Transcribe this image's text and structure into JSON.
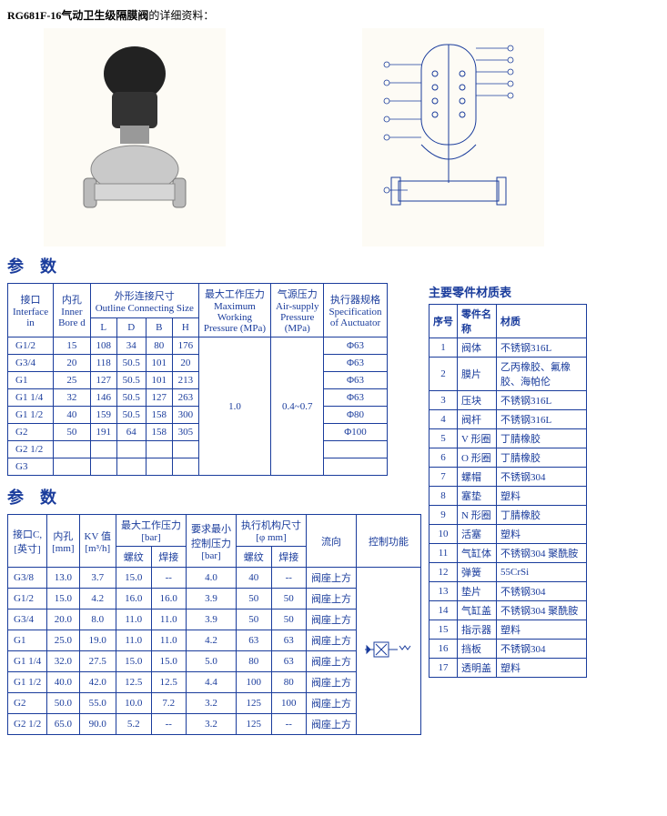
{
  "title_bold": "RG681F-16气动卫生级隔膜阀",
  "title_tail": "的详细资料：",
  "section_param": "参数",
  "colors": {
    "line": "#1a3c9c",
    "text": "#1a3c9c",
    "bg": "#ffffff"
  },
  "table1": {
    "headers": {
      "interface": "接口",
      "interface_en": "Interface",
      "interface_in": "in",
      "inner": "内孔",
      "inner_en": "Inner",
      "inner_bd": "Bore d",
      "outline_cn": "外形连接尺寸",
      "outline_en": "Outline Connecting Size",
      "L": "L",
      "D": "D",
      "B": "B",
      "H": "H",
      "maxp_cn": "最大工作压力",
      "maxp_en1": "Maximum",
      "maxp_en2": "Working",
      "maxp_en3": "Pressure (MPa)",
      "airp_cn": "气源压力",
      "airp_en1": "Air-supply",
      "airp_en2": "Pressure",
      "airp_en3": "(MPa)",
      "spec_cn": "执行器规格",
      "spec_en1": "Specification",
      "spec_en2": "of Auctuator"
    },
    "max_pressure": "1.0",
    "air_pressure": "0.4~0.7",
    "rows": [
      {
        "if": "G1/2",
        "bd": "15",
        "L": "108",
        "D": "34",
        "B": "80",
        "H": "176",
        "spec": "Φ63"
      },
      {
        "if": "G3/4",
        "bd": "20",
        "L": "118",
        "D": "50.5",
        "B": "101",
        "H": "20",
        "spec": "Φ63"
      },
      {
        "if": "G1",
        "bd": "25",
        "L": "127",
        "D": "50.5",
        "B": "101",
        "H": "213",
        "spec": "Φ63"
      },
      {
        "if": "G1 1/4",
        "bd": "32",
        "L": "146",
        "D": "50.5",
        "B": "127",
        "H": "263",
        "spec": "Φ63"
      },
      {
        "if": "G1 1/2",
        "bd": "40",
        "L": "159",
        "D": "50.5",
        "B": "158",
        "H": "300",
        "spec": "Φ80"
      },
      {
        "if": "G2",
        "bd": "50",
        "L": "191",
        "D": "64",
        "B": "158",
        "H": "305",
        "spec": "Φ100"
      },
      {
        "if": "G2 1/2",
        "bd": "",
        "L": "",
        "D": "",
        "B": "",
        "H": "",
        "spec": ""
      },
      {
        "if": "G3",
        "bd": "",
        "L": "",
        "D": "",
        "B": "",
        "H": "",
        "spec": ""
      }
    ]
  },
  "table2": {
    "headers": {
      "ifc_cn": "接口C,",
      "ifc_en": "[英寸]",
      "bore_cn": "内孔",
      "bore_en": "[mm]",
      "kv_cn": "KV 值",
      "kv_en": "[m³/h]",
      "maxp_cn": "最大工作压力",
      "maxp_en": "[bar]",
      "th": "螺纹",
      "we": "焊接",
      "minp_cn": "要求最小",
      "minp_cn2": "控制压力",
      "minp_en": "[bar]",
      "act_cn": "执行机构尺寸",
      "act_en": "[φ mm]",
      "flow": "流向",
      "func": "控制功能"
    },
    "flow_label": "阀座上方",
    "rows": [
      {
        "c": "G3/8",
        "b": "13.0",
        "kv": "3.7",
        "mt": "15.0",
        "mw": "--",
        "mp": "4.0",
        "at": "40",
        "aw": "--"
      },
      {
        "c": "G1/2",
        "b": "15.0",
        "kv": "4.2",
        "mt": "16.0",
        "mw": "16.0",
        "mp": "3.9",
        "at": "50",
        "aw": "50"
      },
      {
        "c": "G3/4",
        "b": "20.0",
        "kv": "8.0",
        "mt": "11.0",
        "mw": "11.0",
        "mp": "3.9",
        "at": "50",
        "aw": "50"
      },
      {
        "c": "G1",
        "b": "25.0",
        "kv": "19.0",
        "mt": "11.0",
        "mw": "11.0",
        "mp": "4.2",
        "at": "63",
        "aw": "63"
      },
      {
        "c": "G1 1/4",
        "b": "32.0",
        "kv": "27.5",
        "mt": "15.0",
        "mw": "15.0",
        "mp": "5.0",
        "at": "80",
        "aw": "63"
      },
      {
        "c": "G1 1/2",
        "b": "40.0",
        "kv": "42.0",
        "mt": "12.5",
        "mw": "12.5",
        "mp": "4.4",
        "at": "100",
        "aw": "80"
      },
      {
        "c": "G2",
        "b": "50.0",
        "kv": "55.0",
        "mt": "10.0",
        "mw": "7.2",
        "mp": "3.2",
        "at": "125",
        "aw": "100"
      },
      {
        "c": "G2 1/2",
        "b": "65.0",
        "kv": "90.0",
        "mt": "5.2",
        "mw": "--",
        "mp": "3.2",
        "at": "125",
        "aw": "--"
      }
    ]
  },
  "mat_title": "主要零件材质表",
  "mat_headers": {
    "no": "序号",
    "name": "零件名称",
    "mat": "材质"
  },
  "mat_rows": [
    {
      "n": "1",
      "p": "阀体",
      "m": "不锈钢316L"
    },
    {
      "n": "2",
      "p": "膜片",
      "m": "乙丙橡胶、氟橡胶、海帕伦"
    },
    {
      "n": "3",
      "p": "压块",
      "m": "不锈钢316L"
    },
    {
      "n": "4",
      "p": "阀杆",
      "m": "不锈钢316L"
    },
    {
      "n": "5",
      "p": "V 形圈",
      "m": "丁腈橡胶"
    },
    {
      "n": "6",
      "p": "O 形圈",
      "m": "丁腈橡胶"
    },
    {
      "n": "7",
      "p": "螺帽",
      "m": "不锈钢304"
    },
    {
      "n": "8",
      "p": "塞垫",
      "m": "塑料"
    },
    {
      "n": "9",
      "p": "N 形圈",
      "m": "丁腈橡胶"
    },
    {
      "n": "10",
      "p": "活塞",
      "m": "塑料"
    },
    {
      "n": "11",
      "p": "气缸体",
      "m": "不锈钢304 聚酰胺"
    },
    {
      "n": "12",
      "p": "弹簧",
      "m": "55CrSi"
    },
    {
      "n": "13",
      "p": "垫片",
      "m": "不锈钢304"
    },
    {
      "n": "14",
      "p": "气缸盖",
      "m": "不锈钢304 聚酰胺"
    },
    {
      "n": "15",
      "p": "指示器",
      "m": "塑料"
    },
    {
      "n": "16",
      "p": "挡板",
      "m": "不锈钢304"
    },
    {
      "n": "17",
      "p": "透明盖",
      "m": "塑料"
    }
  ]
}
